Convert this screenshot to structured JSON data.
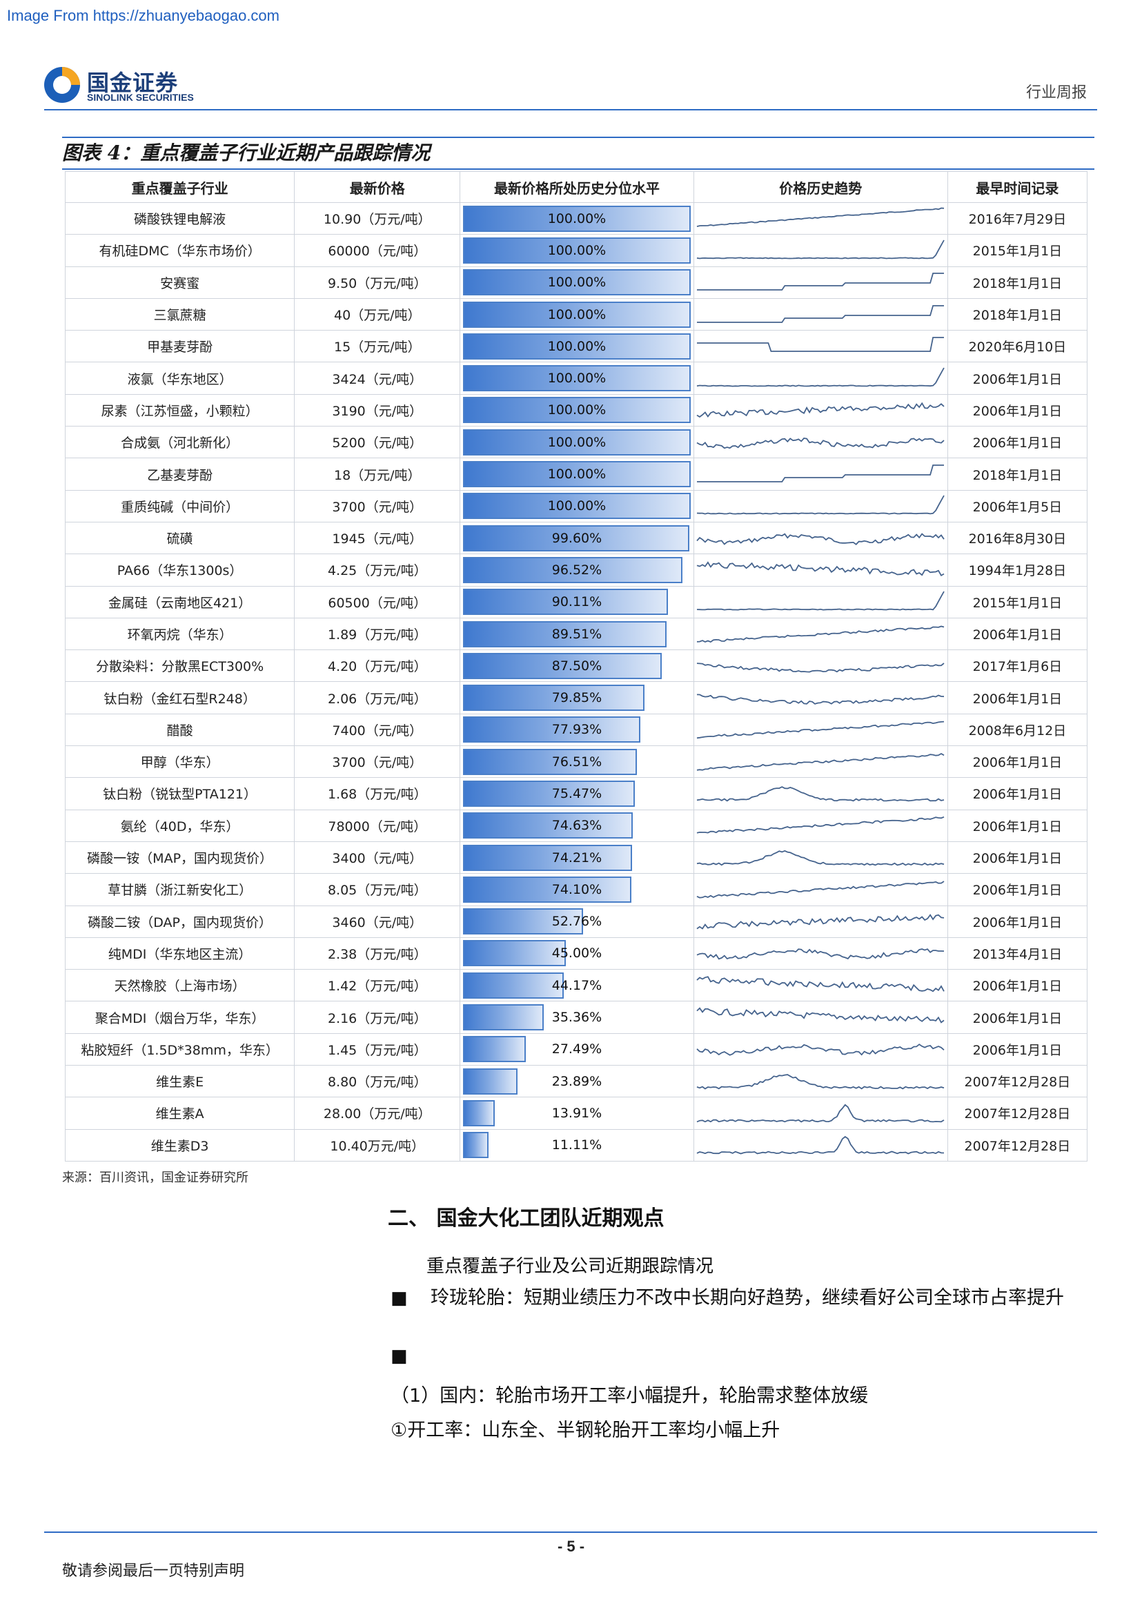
{
  "watermark": "Image From https://zhuanyebaogao.com",
  "header": {
    "logo_cn": "国金证券",
    "logo_en": "SINOLINK SECURITIES",
    "doc_type": "行业周报"
  },
  "figure": {
    "title": "图表 4：重点覆盖子行业近期产品跟踪情况",
    "columns": [
      "重点覆盖子行业",
      "最新价格",
      "最新价格所处历史分位水平",
      "价格历史趋势",
      "最早时间记录"
    ],
    "rows": [
      {
        "industry": "磷酸铁锂电解液",
        "price": "10.90（万元/吨）",
        "pct_label": "100.00%",
        "pct": 100.0,
        "trend": "rising-steps",
        "earliest": "2016年7月29日"
      },
      {
        "industry": "有机硅DMC（华东市场价）",
        "price": "60000（元/吨）",
        "pct_label": "100.00%",
        "pct": 100.0,
        "trend": "flat-spike",
        "earliest": "2015年1月1日"
      },
      {
        "industry": "安赛蜜",
        "price": "9.50（万元/吨）",
        "pct_label": "100.00%",
        "pct": 100.0,
        "trend": "step-up",
        "earliest": "2018年1月1日"
      },
      {
        "industry": "三氯蔗糖",
        "price": "40（万元/吨）",
        "pct_label": "100.00%",
        "pct": 100.0,
        "trend": "step-up",
        "earliest": "2018年1月1日"
      },
      {
        "industry": "甲基麦芽酚",
        "price": "15（万元/吨）",
        "pct_label": "100.00%",
        "pct": 100.0,
        "trend": "dip-spike",
        "earliest": "2020年6月10日"
      },
      {
        "industry": "液氯（华东地区）",
        "price": "3424（元/吨）",
        "pct_label": "100.00%",
        "pct": 100.0,
        "trend": "flat-spike",
        "earliest": "2006年1月1日"
      },
      {
        "industry": "尿素（江苏恒盛，小颗粒）",
        "price": "3190（元/吨）",
        "pct_label": "100.00%",
        "pct": 100.0,
        "trend": "noisy-rise",
        "earliest": "2006年1月1日"
      },
      {
        "industry": "合成氨（河北新化）",
        "price": "5200（元/吨）",
        "pct_label": "100.00%",
        "pct": 100.0,
        "trend": "noisy",
        "earliest": "2006年1月1日"
      },
      {
        "industry": "乙基麦芽酚",
        "price": "18（万元/吨）",
        "pct_label": "100.00%",
        "pct": 100.0,
        "trend": "step-up",
        "earliest": "2018年1月1日"
      },
      {
        "industry": "重质纯碱（中间价）",
        "price": "3700（元/吨）",
        "pct_label": "100.00%",
        "pct": 100.0,
        "trend": "flat-spike",
        "earliest": "2006年1月5日"
      },
      {
        "industry": "硫磺",
        "price": "1945（元/吨）",
        "pct_label": "99.60%",
        "pct": 99.6,
        "trend": "noisy",
        "earliest": "2016年8月30日"
      },
      {
        "industry": "PA66（华东1300s）",
        "price": "4.25（万元/吨）",
        "pct_label": "96.52%",
        "pct": 96.52,
        "trend": "noisy-fall",
        "earliest": "1994年1月28日"
      },
      {
        "industry": "金属硅（云南地区421）",
        "price": "60500（元/吨）",
        "pct_label": "90.11%",
        "pct": 90.11,
        "trend": "flat-spike",
        "earliest": "2015年1月1日"
      },
      {
        "industry": "环氧丙烷（华东）",
        "price": "1.89（万元/吨）",
        "pct_label": "89.51%",
        "pct": 89.51,
        "trend": "rising",
        "earliest": "2006年1月1日"
      },
      {
        "industry": "分散染料：分散黑ECT300%",
        "price": "4.20（万元/吨）",
        "pct_label": "87.50%",
        "pct": 87.5,
        "trend": "dip",
        "earliest": "2017年1月6日"
      },
      {
        "industry": "钛白粉（金红石型R248）",
        "price": "2.06（万元/吨）",
        "pct_label": "79.85%",
        "pct": 79.85,
        "trend": "dip",
        "earliest": "2006年1月1日"
      },
      {
        "industry": "醋酸",
        "price": "7400（元/吨）",
        "pct_label": "77.93%",
        "pct": 77.93,
        "trend": "rising",
        "earliest": "2008年6月12日"
      },
      {
        "industry": "甲醇（华东）",
        "price": "3700（元/吨）",
        "pct_label": "76.51%",
        "pct": 76.51,
        "trend": "rising",
        "earliest": "2006年1月1日"
      },
      {
        "industry": "钛白粉（锐钛型PTA121）",
        "price": "1.68（万元/吨）",
        "pct_label": "75.47%",
        "pct": 75.47,
        "trend": "hump",
        "earliest": "2006年1月1日"
      },
      {
        "industry": "氨纶（40D，华东）",
        "price": "78000（元/吨）",
        "pct_label": "74.63%",
        "pct": 74.63,
        "trend": "rising",
        "earliest": "2006年1月1日"
      },
      {
        "industry": "磷酸一铵（MAP，国内现货价）",
        "price": "3400（元/吨）",
        "pct_label": "74.21%",
        "pct": 74.21,
        "trend": "hump",
        "earliest": "2006年1月1日"
      },
      {
        "industry": "草甘膦（浙江新安化工）",
        "price": "8.05（万元/吨）",
        "pct_label": "74.10%",
        "pct": 74.1,
        "trend": "rising",
        "earliest": "2006年1月1日"
      },
      {
        "industry": "磷酸二铵（DAP，国内现货价）",
        "price": "3460（元/吨）",
        "pct_label": "52.76%",
        "pct": 52.76,
        "trend": "noisy-rise",
        "earliest": "2006年1月1日"
      },
      {
        "industry": "纯MDI（华东地区主流）",
        "price": "2.38（万元/吨）",
        "pct_label": "45.00%",
        "pct": 45.0,
        "trend": "noisy",
        "earliest": "2013年4月1日"
      },
      {
        "industry": "天然橡胶（上海市场）",
        "price": "1.42（万元/吨）",
        "pct_label": "44.17%",
        "pct": 44.17,
        "trend": "noisy-fall",
        "earliest": "2006年1月1日"
      },
      {
        "industry": "聚合MDI（烟台万华，华东）",
        "price": "2.16（万元/吨）",
        "pct_label": "35.36%",
        "pct": 35.36,
        "trend": "noisy-fall",
        "earliest": "2006年1月1日"
      },
      {
        "industry": "粘胶短纤（1.5D*38mm，华东）",
        "price": "1.45（万元/吨）",
        "pct_label": "27.49%",
        "pct": 27.49,
        "trend": "noisy",
        "earliest": "2006年1月1日"
      },
      {
        "industry": "维生素E",
        "price": "8.80（万元/吨）",
        "pct_label": "23.89%",
        "pct": 23.89,
        "trend": "hump",
        "earliest": "2007年12月28日"
      },
      {
        "industry": "维生素A",
        "price": "28.00（万元/吨）",
        "pct_label": "13.91%",
        "pct": 13.91,
        "trend": "spike-mid",
        "earliest": "2007年12月28日"
      },
      {
        "industry": "维生素D3",
        "price": "10.40万元/吨）",
        "pct_label": "11.11%",
        "pct": 11.11,
        "trend": "spike-mid",
        "earliest": "2007年12月28日"
      }
    ],
    "source": "来源：百川资讯，国金证券研究所"
  },
  "section": {
    "heading": "二、 国金大化工团队近期观点",
    "subheading": "重点覆盖子行业及公司近期跟踪情况",
    "bullet_mark": "■",
    "bullet1": "玲珑轮胎：短期业绩压力不改中长期向好趋势，继续看好公司全球市占率提升",
    "bullet2": "",
    "para1": "（1）国内：轮胎市场开工率小幅提升，轮胎需求整体放缓",
    "para2": "①开工率：山东全、半钢轮胎开工率均小幅上升"
  },
  "footer": {
    "page": "- 5 -",
    "note": "敬请参阅最后一页特别声明"
  },
  "colors": {
    "accent": "#2e6bc4",
    "bar_dark": "#3f79cf",
    "bar_light": "#dfe9f8",
    "spark": "#45638d"
  }
}
